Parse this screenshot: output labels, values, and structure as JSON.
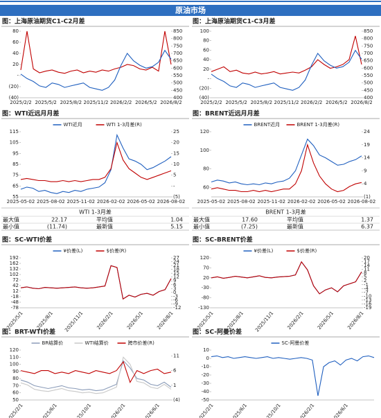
{
  "header": {
    "title": "原油市场"
  },
  "chart_data": [
    {
      "type": "line",
      "title": "图：上海原油期货C1-C2月差",
      "categories": [
        "2025/2/2",
        null,
        null,
        null,
        "2025/5/2",
        null,
        null,
        null,
        "2025/8/2",
        null,
        null,
        null,
        "2025/11/2",
        null,
        null,
        null,
        "2026/2/2",
        null,
        null,
        null,
        "2026/5/2",
        null,
        null,
        null,
        "2026/8/2"
      ],
      "series": [
        {
          "color": "#c00000",
          "values": [
            10,
            80,
            12,
            5,
            8,
            10,
            6,
            4,
            8,
            10,
            5,
            8,
            6,
            10,
            8,
            12,
            15,
            20,
            18,
            12,
            10,
            15,
            8,
            80,
            20
          ]
        },
        {
          "color": "#1f5fbf",
          "axis": "y2",
          "values": [
            560,
            530,
            510,
            480,
            470,
            500,
            490,
            470,
            480,
            490,
            500,
            470,
            460,
            450,
            470,
            520,
            620,
            700,
            650,
            620,
            600,
            610,
            640,
            720,
            660
          ]
        }
      ],
      "ylim": [
        -40,
        80
      ],
      "yticks": [
        80,
        60,
        40,
        20,
        {
          "value": 0,
          "label": "-"
        },
        {
          "value": -20,
          "label": "(20)"
        },
        {
          "value": -40,
          "label": "(40)"
        }
      ],
      "y2lim": [
        400,
        850
      ],
      "y2ticks": [
        850,
        800,
        750,
        700,
        650,
        600,
        550,
        500,
        450,
        400
      ]
    },
    {
      "type": "line",
      "title": "图：上海原油期货C1-C3月差",
      "categories": [
        "2025/2/2",
        null,
        null,
        null,
        "2025/5/2",
        null,
        null,
        null,
        "2025/8/2",
        null,
        null,
        null,
        "2025/11/2",
        null,
        null,
        null,
        "2026/2/2",
        null,
        null,
        null,
        "2026/5/2",
        null,
        null,
        null,
        "2026/8/2"
      ],
      "series": [
        {
          "color": "#c00000",
          "values": [
            15,
            20,
            25,
            15,
            18,
            12,
            10,
            14,
            10,
            12,
            15,
            10,
            12,
            14,
            12,
            18,
            25,
            40,
            30,
            22,
            25,
            30,
            40,
            90,
            30
          ]
        },
        {
          "color": "#1f5fbf",
          "axis": "y2",
          "values": [
            560,
            530,
            510,
            480,
            470,
            500,
            490,
            470,
            480,
            490,
            500,
            470,
            460,
            450,
            470,
            520,
            620,
            700,
            650,
            620,
            600,
            610,
            640,
            720,
            660
          ]
        }
      ],
      "ylim": [
        -40,
        100
      ],
      "yticks": [
        100,
        80,
        60,
        40,
        20,
        {
          "value": 0,
          "label": "-"
        },
        {
          "value": -20,
          "label": "(20)"
        },
        {
          "value": -40,
          "label": "(40)"
        }
      ],
      "y2lim": [
        400,
        850
      ],
      "y2ticks": [
        850,
        800,
        750,
        700,
        650,
        600,
        550,
        500,
        450,
        400
      ]
    },
    {
      "type": "line",
      "title": "图：WTI近远月月差",
      "legend": "top",
      "categories": [
        "2025-05-02",
        null,
        null,
        null,
        null,
        "2025-08-02",
        null,
        null,
        null,
        null,
        "2025-11-02",
        null,
        null,
        null,
        null,
        "2026-02-02",
        null,
        null,
        null,
        null,
        "2026-05-02",
        null,
        null,
        null,
        null,
        "2026-08-02"
      ],
      "series": [
        {
          "name": "WTI近月",
          "color": "#1f5fbf",
          "values": [
            62,
            64,
            63,
            60,
            61,
            59,
            58,
            60,
            59,
            61,
            60,
            62,
            63,
            64,
            68,
            80,
            112,
            100,
            90,
            88,
            85,
            80,
            82,
            85,
            88,
            92
          ]
        },
        {
          "name": "WTI 1-3月差(R)",
          "color": "#c00000",
          "axis": "y2",
          "values": [
            3,
            3.5,
            3,
            2.5,
            2.5,
            2,
            2,
            2.5,
            2,
            2.5,
            2,
            2.5,
            3,
            3,
            4,
            8,
            20,
            12,
            8,
            6,
            4,
            3,
            4,
            5,
            6,
            7
          ]
        }
      ],
      "ylim": [
        55,
        115
      ],
      "yticks": [
        115,
        105,
        95,
        85,
        75,
        65,
        55
      ],
      "y2lim": [
        -5,
        25
      ],
      "y2ticks": [
        25,
        20,
        15,
        10,
        5,
        {
          "value": 0,
          "label": "-"
        },
        {
          "value": -5,
          "label": "(5)"
        }
      ]
    },
    {
      "type": "line",
      "title": "图：BRENT近远月月差",
      "legend": "top",
      "categories": [
        "2025-05-02",
        null,
        null,
        null,
        null,
        "2025-08-02",
        null,
        null,
        null,
        null,
        "2025-11-02",
        null,
        null,
        null,
        null,
        "2026-02-02",
        null,
        null,
        null,
        null,
        "2026-05-02",
        null,
        null,
        null,
        null,
        "2026-08-02"
      ],
      "series": [
        {
          "name": "BRENT近月",
          "color": "#1f5fbf",
          "values": [
            66,
            68,
            67,
            65,
            66,
            64,
            63,
            64,
            63,
            65,
            64,
            66,
            67,
            70,
            78,
            95,
            112,
            105,
            95,
            92,
            88,
            84,
            85,
            88,
            90,
            94
          ]
        },
        {
          "name": "BRENT 1-3月差(R)",
          "color": "#c00000",
          "axis": "y2",
          "values": [
            2,
            2.5,
            2,
            1.5,
            1.5,
            1,
            1,
            1.5,
            1,
            1.5,
            1,
            1.5,
            2,
            2,
            4,
            9,
            19,
            12,
            7,
            4,
            2,
            1,
            1.5,
            3,
            4,
            4.5
          ]
        }
      ],
      "ylim": [
        50,
        120
      ],
      "yticks": [
        120,
        100,
        80,
        60
      ],
      "y2lim": [
        -1,
        24
      ],
      "y2ticks": [
        24,
        19,
        14,
        9,
        4,
        {
          "value": -1,
          "label": "(1)"
        }
      ]
    },
    {
      "type": "line",
      "title": "图：SC-WTI价差",
      "legend": "top",
      "categories": [
        "2025/5/1",
        null,
        null,
        null,
        null,
        "2025/8/1",
        null,
        null,
        null,
        null,
        "2025/11/1",
        null,
        null,
        null,
        null,
        "2026/2/1",
        null,
        null,
        null,
        null,
        "2026/5/1",
        null,
        null,
        null,
        null,
        "2026/8/1"
      ],
      "series": [
        {
          "name": "¥价差(L)",
          "color": "#1f5fbf",
          "values": [
            30,
            35,
            28,
            25,
            32,
            30,
            28,
            30,
            32,
            35,
            30,
            28,
            30,
            35,
            40,
            150,
            140,
            -30,
            -10,
            -20,
            -5,
            0,
            -10,
            10,
            20,
            80
          ]
        },
        {
          "name": "$价差(R)",
          "color": "#c00000",
          "axis": "y2",
          "values": [
            3.6,
            4.3,
            3.3,
            2.9,
            3.9,
            3.6,
            3.3,
            3.6,
            3.9,
            4.3,
            3.6,
            3.3,
            3.6,
            4.3,
            5.0,
            20.9,
            19.5,
            -5.1,
            -2.2,
            -3.6,
            -1.5,
            -0.7,
            -2.2,
            0.7,
            2.2,
            10.8
          ]
        }
      ],
      "ylim": [
        -78,
        192
      ],
      "yticks": [
        192,
        162,
        132,
        102,
        72,
        42,
        12,
        -18,
        -48,
        -78
      ],
      "y2lim": [
        -12,
        27
      ],
      "y2ticks": [
        27,
        24,
        21,
        18,
        15,
        12,
        9,
        6,
        3,
        0,
        -3,
        -6,
        -9,
        -12
      ]
    },
    {
      "type": "line",
      "title": "图：SC-BRENT价差",
      "legend": "top",
      "categories": [
        "2025/5/1",
        null,
        null,
        null,
        null,
        "2025/8/1",
        null,
        null,
        null,
        null,
        "2025/11/1",
        null,
        null,
        null,
        null,
        "2026/2/1",
        null,
        null,
        null,
        null,
        "2026/5/1",
        null,
        null,
        null,
        null,
        "2026/8/1"
      ],
      "series": [
        {
          "name": "¥价差(L)",
          "color": "#1f5fbf",
          "values": [
            20,
            25,
            18,
            22,
            28,
            24,
            20,
            25,
            30,
            22,
            20,
            24,
            26,
            28,
            35,
            100,
            60,
            -20,
            -60,
            -40,
            -30,
            -50,
            -20,
            -10,
            0,
            50
          ]
        },
        {
          "name": "$价差(R)",
          "color": "#c00000",
          "axis": "y2",
          "values": [
            4.4,
            5.2,
            4.1,
            4.7,
            5.6,
            5.0,
            4.4,
            5.2,
            6.0,
            4.7,
            4.4,
            5.0,
            5.3,
            5.6,
            6.7,
            16.9,
            10.6,
            -1.8,
            -8.1,
            -5.0,
            -3.4,
            -6.5,
            -1.8,
            -0.3,
            1.3,
            9.1
          ]
        }
      ],
      "ylim": [
        -130,
        120
      ],
      "yticks": [
        120,
        70,
        20,
        -30,
        -80,
        -130
      ],
      "y2lim": [
        -19,
        20
      ],
      "y2ticks": [
        20,
        17,
        14,
        11,
        8,
        5,
        2,
        -1,
        -4,
        -7,
        -10,
        -13,
        -16,
        -19
      ]
    },
    {
      "type": "line",
      "title": "图：BRT-WTI价差",
      "legend": "top",
      "categories": [
        "2025/2/1",
        null,
        null,
        null,
        null,
        "2025/6/1",
        null,
        null,
        null,
        null,
        "2025/10/1",
        null,
        null,
        null,
        null,
        "2026/2/1",
        null,
        null,
        null,
        null,
        "2026/6/1",
        null,
        null
      ],
      "series": [
        {
          "name": "BR结算价",
          "color": "#8a9bb8",
          "values": [
            78,
            75,
            70,
            68,
            66,
            68,
            70,
            67,
            66,
            64,
            65,
            63,
            64,
            68,
            72,
            105,
            95,
            80,
            78,
            72,
            70,
            75,
            68
          ]
        },
        {
          "name": "WTI结算价",
          "color": "#c8c8c8",
          "values": [
            74,
            71,
            65,
            63,
            62,
            64,
            66,
            63,
            62,
            60,
            61,
            59,
            60,
            64,
            68,
            110,
            100,
            76,
            74,
            68,
            66,
            72,
            65
          ]
        },
        {
          "name": "跨市价差(R)",
          "color": "#c00000",
          "axis": "y2",
          "values": [
            6,
            5.5,
            5,
            6,
            6,
            5,
            5.5,
            5,
            6,
            5.5,
            5,
            6,
            5.5,
            5,
            6,
            9,
            2,
            6,
            5,
            6,
            6.5,
            5,
            5.5
          ]
        }
      ],
      "ylim": [
        50,
        120
      ],
      "yticks": [
        120,
        110,
        100,
        90,
        80,
        70,
        60,
        50
      ],
      "y2lim": [
        -4,
        13
      ],
      "y2ticks": [
        11,
        6,
        1,
        {
          "value": -4,
          "label": "(4)"
        }
      ]
    },
    {
      "type": "line",
      "title": "图：SC-阿曼价差",
      "legend": "top",
      "categories": [
        "2025/2/1",
        null,
        null,
        null,
        null,
        null,
        "2025/6/1",
        null,
        null,
        null,
        null,
        null,
        "2025/10/1",
        null,
        null,
        null,
        null,
        null,
        "2026/2/1",
        null,
        null,
        null,
        null,
        null,
        "2026/6/1",
        null,
        null,
        null,
        null,
        null
      ],
      "series": [
        {
          "name": "SC-阿曼价差",
          "color": "#1f5fbf",
          "values": [
            2,
            3,
            1,
            2,
            0,
            1,
            2,
            1,
            0,
            1,
            2,
            0,
            1,
            0,
            -1,
            0,
            1,
            0,
            -2,
            -45,
            -10,
            -5,
            -3,
            -8,
            -2,
            0,
            -3,
            2,
            3,
            1
          ]
        }
      ],
      "ylim": [
        -50,
        10
      ],
      "yticks": [
        10,
        0,
        -10,
        -20,
        -30,
        -40,
        -50
      ]
    }
  ],
  "tables": [
    {
      "title": "WTI 1-3月差",
      "rows": [
        [
          "最大值",
          "22.17",
          "平均值",
          "1.04"
        ],
        [
          "最小值",
          "(11.74)",
          "最新值",
          "5.15"
        ]
      ]
    },
    {
      "title": "BRENT 1-3月差",
      "rows": [
        [
          "最大值",
          "17.60",
          "平均值",
          "1.37"
        ],
        [
          "最小值",
          "(7.25)",
          "最新值",
          "6.37"
        ]
      ]
    }
  ]
}
